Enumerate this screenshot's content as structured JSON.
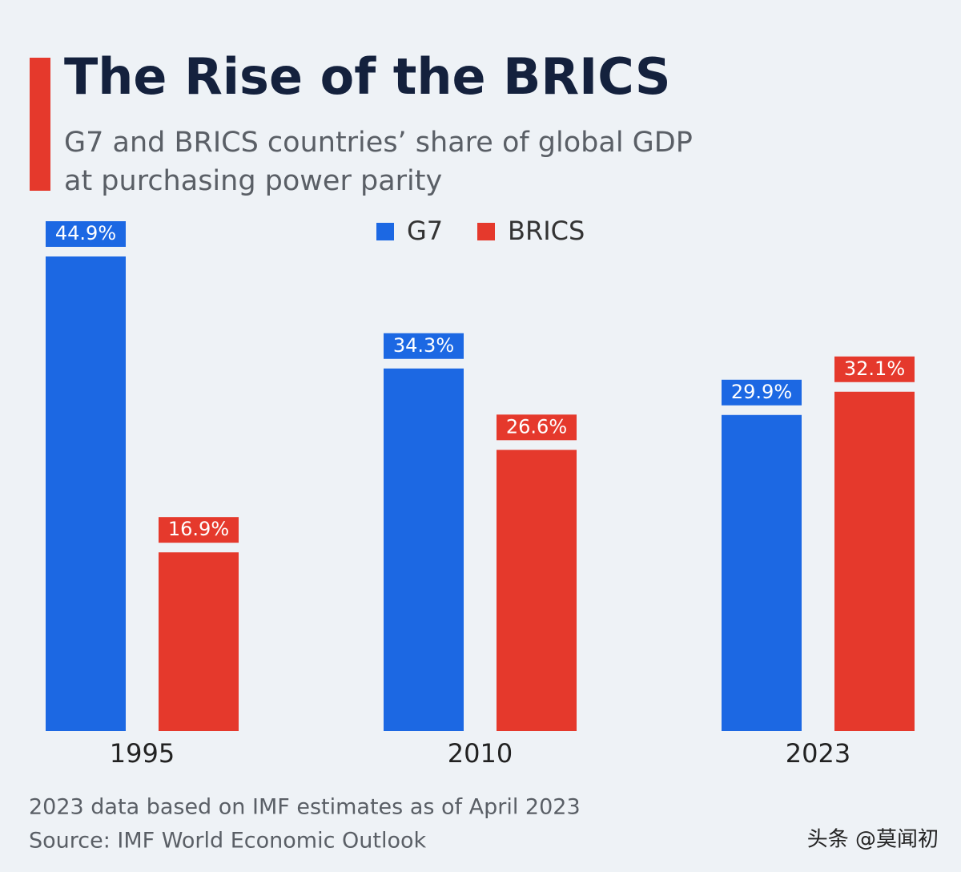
{
  "chart_data": {
    "type": "bar",
    "title": "The Rise of the BRICS",
    "subtitle": [
      "G7 and BRICS countries’ share of global GDP",
      "at purchasing power parity"
    ],
    "categories": [
      "1995",
      "2010",
      "2023"
    ],
    "series": [
      {
        "name": "G7",
        "color": "#1c68e3",
        "values": [
          44.9,
          34.3,
          29.9
        ],
        "value_labels": [
          "44.9%",
          "34.3%",
          "29.9%"
        ]
      },
      {
        "name": "BRICS",
        "color": "#e5392c",
        "values": [
          16.9,
          26.6,
          32.1
        ],
        "value_labels": [
          "16.9%",
          "26.6%",
          "32.1%"
        ]
      }
    ],
    "notes": [
      "2023 data based on IMF estimates as of April 2023",
      "Source: IMF World Economic Outlook"
    ]
  },
  "watermark": "头条 @莫闻初"
}
